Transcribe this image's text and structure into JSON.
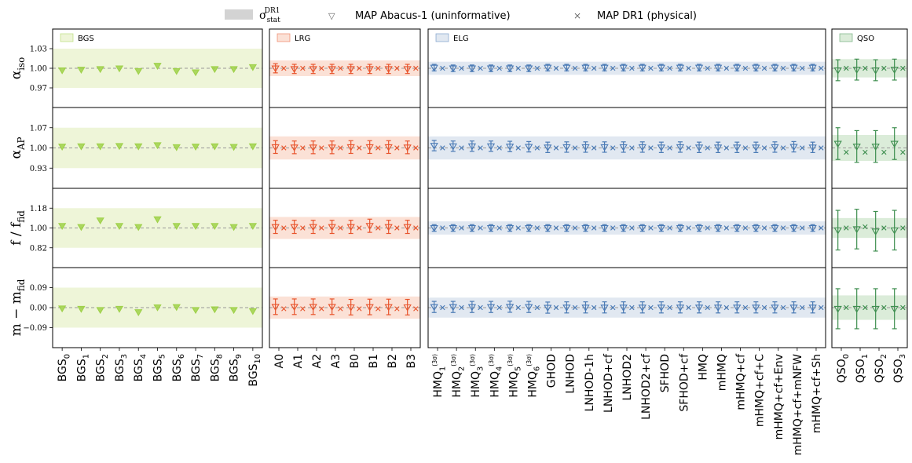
{
  "legend": {
    "stat": "σ_stat^DR1",
    "abacus": "MAP Abacus-1 (uninformative)",
    "dr1": "MAP DR1 (physical)"
  },
  "chart_data": {
    "type": "scatter",
    "rows": [
      {
        "key": "aiso",
        "label": "α_iso",
        "ylim": [
          0.94,
          1.06
        ],
        "ticks": [
          0.97,
          1.0,
          1.03
        ],
        "tick_labels": [
          "0.97",
          "1.00",
          "1.03"
        ],
        "ref": 1.0
      },
      {
        "key": "aap",
        "label": "α_AP",
        "ylim": [
          0.86,
          1.14
        ],
        "ticks": [
          0.93,
          1.0,
          1.07
        ],
        "tick_labels": [
          "0.93",
          "1.00",
          "1.07"
        ],
        "ref": 1.0
      },
      {
        "key": "f",
        "label": "f / f_fid",
        "ylim": [
          0.64,
          1.36
        ],
        "ticks": [
          0.82,
          1.0,
          1.18
        ],
        "tick_labels": [
          "0.82",
          "1.00",
          "1.18"
        ],
        "ref": 1.0
      },
      {
        "key": "m",
        "label": "m − m_fid",
        "ylim": [
          -0.18,
          0.18
        ],
        "ticks": [
          -0.09,
          0.0,
          0.09
        ],
        "tick_labels": [
          "−0.09",
          "0.00",
          "0.09"
        ],
        "ref": 0.0
      }
    ],
    "panels": [
      {
        "name": "BGS",
        "color": "#9fd14a",
        "band_color": "#eef5d8",
        "has_errors": false,
        "has_dr1": false,
        "band": {
          "aiso": 0.03,
          "aap": 0.07,
          "f": 0.18,
          "m": 0.09
        },
        "x": [
          "BGS_0",
          "BGS_1",
          "BGS_2",
          "BGS_3",
          "BGS_4",
          "BGS_5",
          "BGS_6",
          "BGS_7",
          "BGS_8",
          "BGS_9",
          "BGS_10"
        ],
        "series": {
          "aiso": {
            "abacus": [
              0.997,
              0.998,
              0.999,
              1.0,
              0.996,
              1.004,
              0.996,
              0.994,
              0.999,
              0.999,
              1.002
            ]
          },
          "aap": {
            "abacus": [
              1.005,
              1.006,
              1.006,
              1.007,
              1.006,
              1.01,
              1.003,
              1.005,
              1.006,
              1.004,
              1.006
            ]
          },
          "f": {
            "abacus": [
              1.02,
              1.01,
              1.07,
              1.02,
              1.01,
              1.08,
              1.02,
              1.02,
              1.02,
              1.01,
              1.02
            ]
          },
          "m": {
            "abacus": [
              -0.003,
              -0.005,
              -0.01,
              -0.005,
              -0.02,
              0.002,
              0.003,
              -0.01,
              -0.007,
              -0.01,
              -0.015
            ]
          }
        }
      },
      {
        "name": "LRG",
        "color": "#e8542c",
        "band_color": "#fbe1d6",
        "has_errors": true,
        "has_dr1": true,
        "band": {
          "aiso": 0.012,
          "aap": 0.04,
          "f": 0.1,
          "m": 0.05
        },
        "x": [
          "A0",
          "A1",
          "A2",
          "A3",
          "B0",
          "B1",
          "B2",
          "B3"
        ],
        "err": {
          "aiso": 0.007,
          "aap": 0.022,
          "f": 0.06,
          "m": 0.035
        },
        "series": {
          "aiso": {
            "abacus": [
              1.0,
              0.999,
              0.999,
              0.999,
              0.999,
              0.999,
              0.999,
              0.999
            ],
            "dr1": [
              1.0,
              1.0,
              1.0,
              1.0,
              1.0,
              1.0,
              1.0,
              1.0
            ]
          },
          "aap": {
            "abacus": [
              1.003,
              1.002,
              1.002,
              1.002,
              1.003,
              1.003,
              1.003,
              1.002
            ],
            "dr1": [
              1.0,
              1.0,
              1.0,
              1.0,
              1.0,
              1.0,
              1.0,
              1.0
            ]
          },
          "f": {
            "abacus": [
              1.01,
              1.01,
              1.01,
              1.01,
              1.01,
              1.02,
              1.01,
              1.01
            ],
            "dr1": [
              1.0,
              1.0,
              1.0,
              1.0,
              1.0,
              1.0,
              1.0,
              1.0
            ]
          },
          "m": {
            "abacus": [
              0.004,
              0.004,
              0.004,
              0.004,
              0.002,
              0.003,
              0.003,
              0.002
            ],
            "dr1": [
              -0.005,
              -0.005,
              -0.005,
              -0.005,
              -0.005,
              -0.005,
              -0.005,
              -0.005
            ]
          }
        }
      },
      {
        "name": "ELG",
        "color": "#4a7ab5",
        "band_color": "#e1e8f1",
        "has_errors": true,
        "has_dr1": true,
        "band": {
          "aiso": 0.01,
          "aap": 0.04,
          "f": 0.06,
          "m": 0.045
        },
        "x": [
          "HMQ_1^(3σ)",
          "HMQ_2^(3σ)",
          "HMQ_3^(3σ)",
          "HMQ_4^(3σ)",
          "HMQ_5^(3σ)",
          "HMQ_6^(3σ)",
          "GHOD",
          "LNHOD",
          "LNHOD-1h",
          "LNHOD+cf",
          "LNHOD2",
          "LNHOD2+cf",
          "SFHOD",
          "SFHOD+cf",
          "HMQ",
          "mHMQ",
          "mHMQ+cf",
          "mHMQ+cf+C",
          "mHMQ+cf+Env",
          "mHMQ+cf+mNFW",
          "mHMQ+cf+Sh"
        ],
        "err": {
          "aiso": 0.005,
          "aap": 0.018,
          "f": 0.03,
          "m": 0.025
        },
        "series": {
          "aiso": {
            "abacus": [
              1.001,
              1.0,
              1.0,
              1.0,
              1.0,
              1.0,
              1.001,
              1.001,
              1.001,
              1.001,
              1.001,
              1.001,
              1.001,
              1.001,
              1.001,
              1.001,
              1.001,
              1.001,
              1.001,
              1.001,
              1.001
            ],
            "dr1": [
              1.0,
              1.0,
              1.0,
              1.0,
              1.0,
              1.0,
              1.0,
              1.0,
              1.0,
              1.0,
              1.0,
              1.0,
              1.0,
              1.0,
              1.0,
              1.0,
              1.0,
              1.0,
              1.0,
              1.0,
              1.0
            ]
          },
          "aap": {
            "abacus": [
              1.008,
              1.006,
              1.006,
              1.006,
              1.005,
              1.004,
              1.002,
              1.003,
              1.003,
              1.003,
              1.003,
              1.003,
              1.002,
              1.003,
              1.002,
              1.002,
              1.002,
              1.002,
              1.003,
              1.004,
              1.002
            ],
            "dr1": [
              1.0,
              1.0,
              1.0,
              1.0,
              1.0,
              1.0,
              1.0,
              1.0,
              1.0,
              1.0,
              1.0,
              1.0,
              1.0,
              1.0,
              1.0,
              1.0,
              1.0,
              1.0,
              1.0,
              1.0,
              1.0
            ]
          },
          "f": {
            "abacus": [
              1.0,
              1.0,
              1.0,
              1.0,
              1.0,
              1.0,
              1.0,
              1.0,
              1.0,
              1.0,
              1.0,
              1.0,
              1.0,
              1.0,
              1.0,
              1.0,
              1.0,
              1.0,
              1.0,
              1.0,
              1.0
            ],
            "dr1": [
              1.0,
              1.0,
              1.0,
              1.0,
              1.0,
              1.0,
              1.0,
              1.0,
              1.0,
              1.0,
              1.0,
              1.0,
              1.0,
              1.0,
              1.0,
              1.0,
              1.0,
              1.0,
              1.0,
              1.0,
              1.0
            ]
          },
          "m": {
            "abacus": [
              0.003,
              0.003,
              0.003,
              0.003,
              0.004,
              0.003,
              0.0,
              0.001,
              0.001,
              0.001,
              0.001,
              0.001,
              0.001,
              0.001,
              0.001,
              0.001,
              0.001,
              0.001,
              0.001,
              0.001,
              0.001
            ],
            "dr1": [
              0.0,
              0.0,
              0.0,
              0.0,
              0.0,
              0.0,
              0.0,
              0.0,
              0.0,
              0.0,
              0.0,
              0.0,
              0.0,
              0.0,
              0.0,
              0.0,
              0.0,
              0.0,
              0.0,
              0.0,
              0.0
            ]
          }
        }
      },
      {
        "name": "QSO",
        "color": "#3e8e4f",
        "band_color": "#dbecd9",
        "has_errors": true,
        "has_dr1": true,
        "band": {
          "aiso": 0.014,
          "aap": 0.045,
          "f": 0.09,
          "m": 0.055
        },
        "x": [
          "QSO_0",
          "QSO_1",
          "QSO_2",
          "QSO_3"
        ],
        "err": {
          "aiso": 0.016,
          "aap": 0.055,
          "f": 0.18,
          "m": 0.09
        },
        "series": {
          "aiso": {
            "abacus": [
              0.997,
              0.998,
              0.997,
              0.998
            ],
            "dr1": [
              1.0,
              1.0,
              1.0,
              1.0
            ]
          },
          "aap": {
            "abacus": [
              1.015,
              1.005,
              1.005,
              1.015
            ],
            "dr1": [
              0.985,
              0.985,
              0.985,
              0.985
            ]
          },
          "f": {
            "abacus": [
              0.98,
              0.99,
              0.97,
              0.98
            ],
            "dr1": [
              1.0,
              1.01,
              1.0,
              1.0
            ]
          },
          "m": {
            "abacus": [
              -0.005,
              -0.005,
              -0.005,
              -0.005
            ],
            "dr1": [
              0.0,
              0.0,
              0.0,
              0.0
            ]
          }
        }
      }
    ]
  }
}
